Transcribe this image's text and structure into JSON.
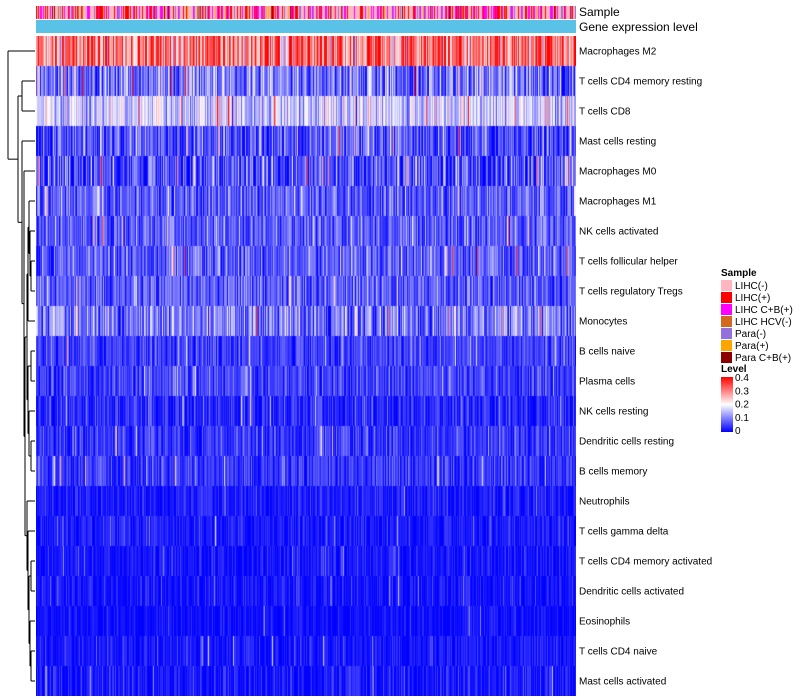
{
  "chart_data": {
    "type": "heatmap",
    "title": "",
    "rows": [
      {
        "label": "Macrophages M2",
        "mean": 0.3,
        "sd": 0.08
      },
      {
        "label": "T cells CD4 memory resting",
        "mean": 0.09,
        "sd": 0.06
      },
      {
        "label": "T cells CD8",
        "mean": 0.16,
        "sd": 0.05
      },
      {
        "label": "Mast cells resting",
        "mean": 0.06,
        "sd": 0.05
      },
      {
        "label": "Macrophages M0",
        "mean": 0.06,
        "sd": 0.06
      },
      {
        "label": "Macrophages M1",
        "mean": 0.07,
        "sd": 0.04
      },
      {
        "label": "NK cells activated",
        "mean": 0.07,
        "sd": 0.04
      },
      {
        "label": "T cells follicular helper",
        "mean": 0.07,
        "sd": 0.04
      },
      {
        "label": "T cells regulatory  Tregs",
        "mean": 0.07,
        "sd": 0.04
      },
      {
        "label": "Monocytes",
        "mean": 0.09,
        "sd": 0.05
      },
      {
        "label": "B cells naive",
        "mean": 0.05,
        "sd": 0.03
      },
      {
        "label": "Plasma cells",
        "mean": 0.05,
        "sd": 0.03
      },
      {
        "label": "NK cells resting",
        "mean": 0.03,
        "sd": 0.03
      },
      {
        "label": "Dendritic cells resting",
        "mean": 0.04,
        "sd": 0.03
      },
      {
        "label": "B cells memory",
        "mean": 0.04,
        "sd": 0.03
      },
      {
        "label": "Neutrophils",
        "mean": 0.02,
        "sd": 0.02
      },
      {
        "label": "T cells gamma delta",
        "mean": 0.02,
        "sd": 0.02
      },
      {
        "label": "T cells CD4 memory activated",
        "mean": 0.015,
        "sd": 0.02
      },
      {
        "label": "Dendritic cells activated",
        "mean": 0.015,
        "sd": 0.02
      },
      {
        "label": "Eosinophils",
        "mean": 0.01,
        "sd": 0.015
      },
      {
        "label": "T cells CD4 naive",
        "mean": 0.015,
        "sd": 0.02
      },
      {
        "label": "Mast cells activated",
        "mean": 0.015,
        "sd": 0.025
      }
    ],
    "n_samples": 540,
    "annotation_tracks": [
      {
        "label": "Sample",
        "type": "categorical"
      },
      {
        "label": "Gene expression level",
        "type": "continuous",
        "color": "#5bc2e7"
      }
    ],
    "legends": [
      {
        "title": "Sample",
        "placement": "right",
        "entries": [
          {
            "label": "LIHC(-)",
            "color": "#ffb6c1"
          },
          {
            "label": "LIHC(+)",
            "color": "#ff0000"
          },
          {
            "label": "LIHC C+B(+)",
            "color": "#ff00ff"
          },
          {
            "label": "LIHC HCV(-)",
            "color": "#d2691e"
          },
          {
            "label": "Para(-)",
            "color": "#9370db"
          },
          {
            "label": "Para(+)",
            "color": "#ffa500"
          },
          {
            "label": "Para C+B(+)",
            "color": "#8b0000"
          }
        ]
      },
      {
        "title": "Level",
        "placement": "right",
        "scale": {
          "min": 0,
          "max": 0.4,
          "colors": [
            "#0000ff",
            "#ffffff",
            "#ff0000"
          ]
        },
        "ticks": [
          "0.4",
          "0.3",
          "0.2",
          "0.1",
          "0"
        ]
      }
    ]
  }
}
